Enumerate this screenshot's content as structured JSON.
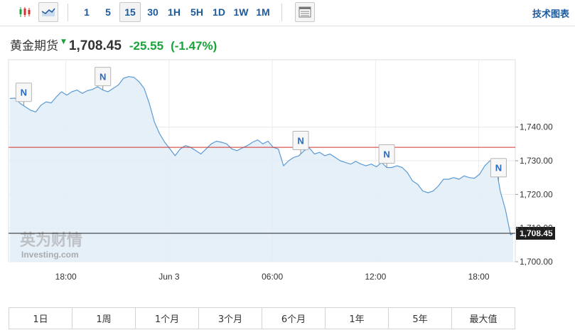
{
  "toolbar": {
    "intervals": [
      "1",
      "5",
      "15",
      "30",
      "1H",
      "5H",
      "1D",
      "1W",
      "1M"
    ],
    "active_interval": "15",
    "technical_chart_label": "技术图表"
  },
  "quote": {
    "name": "黄金期货",
    "price": "1,708.45",
    "change": "-25.55",
    "change_pct": "(-1.47%)",
    "down_color": "#1aa33a"
  },
  "watermark": {
    "brand_cn": "英为财情",
    "brand_en": "Investing.com"
  },
  "ranges": [
    "1日",
    "1周",
    "1个月",
    "3个月",
    "6个月",
    "1年",
    "5年",
    "最大值"
  ],
  "chart_data": {
    "type": "area",
    "title": "",
    "xlabel": "",
    "ylabel": "",
    "ylim": [
      1700,
      1760
    ],
    "y_ticks": [
      1700,
      1710,
      1720,
      1730,
      1740
    ],
    "y_tick_labels": [
      "1,700.00",
      "1,710.00",
      "1,720.00",
      "1,730.00",
      "1,740.00"
    ],
    "x_tick_labels": [
      {
        "label": "18:00",
        "t": 3.75
      },
      {
        "label": "Jun 3",
        "t": 9.75
      },
      {
        "label": "06:00",
        "t": 15.75
      },
      {
        "label": "12:00",
        "t": 21.75
      },
      {
        "label": "18:00",
        "t": 27.75
      }
    ],
    "x_range": [
      0.5,
      29.75
    ],
    "time_unit": "hours",
    "series": [
      {
        "values": [
          [
            0.5,
            1748.5
          ],
          [
            0.8,
            1748.6
          ],
          [
            1.1,
            1747.0
          ],
          [
            1.4,
            1746.0
          ],
          [
            1.7,
            1745.0
          ],
          [
            2.0,
            1744.5
          ],
          [
            2.3,
            1746.5
          ],
          [
            2.6,
            1747.5
          ],
          [
            2.9,
            1747.2
          ],
          [
            3.2,
            1749.0
          ],
          [
            3.5,
            1750.5
          ],
          [
            3.8,
            1749.5
          ],
          [
            4.1,
            1750.5
          ],
          [
            4.4,
            1751.0
          ],
          [
            4.7,
            1750.0
          ],
          [
            5.0,
            1750.8
          ],
          [
            5.3,
            1751.2
          ],
          [
            5.6,
            1752.0
          ],
          [
            5.9,
            1751.0
          ],
          [
            6.2,
            1750.5
          ],
          [
            6.5,
            1751.5
          ],
          [
            6.8,
            1752.5
          ],
          [
            7.1,
            1754.5
          ],
          [
            7.4,
            1755.0
          ],
          [
            7.7,
            1754.8
          ],
          [
            8.0,
            1753.5
          ],
          [
            8.3,
            1751.5
          ],
          [
            8.6,
            1747.0
          ],
          [
            8.9,
            1741.5
          ],
          [
            9.2,
            1738.0
          ],
          [
            9.5,
            1735.5
          ],
          [
            9.8,
            1733.5
          ],
          [
            10.1,
            1731.5
          ],
          [
            10.4,
            1733.5
          ],
          [
            10.7,
            1734.5
          ],
          [
            11.0,
            1734.0
          ],
          [
            11.3,
            1733.0
          ],
          [
            11.6,
            1732.0
          ],
          [
            11.9,
            1733.5
          ],
          [
            12.2,
            1735.0
          ],
          [
            12.5,
            1735.8
          ],
          [
            12.8,
            1735.5
          ],
          [
            13.1,
            1735.0
          ],
          [
            13.4,
            1733.5
          ],
          [
            13.7,
            1733.0
          ],
          [
            14.0,
            1733.8
          ],
          [
            14.3,
            1734.5
          ],
          [
            14.6,
            1735.5
          ],
          [
            14.9,
            1736.2
          ],
          [
            15.2,
            1735.0
          ],
          [
            15.5,
            1735.8
          ],
          [
            15.8,
            1734.0
          ],
          [
            16.1,
            1733.5
          ],
          [
            16.4,
            1728.5
          ],
          [
            16.7,
            1730.0
          ],
          [
            17.0,
            1731.0
          ],
          [
            17.3,
            1731.5
          ],
          [
            17.6,
            1733.0
          ],
          [
            17.9,
            1733.8
          ],
          [
            18.2,
            1732.0
          ],
          [
            18.5,
            1732.5
          ],
          [
            18.8,
            1731.5
          ],
          [
            19.1,
            1732.0
          ],
          [
            19.4,
            1731.0
          ],
          [
            19.7,
            1730.0
          ],
          [
            20.0,
            1729.5
          ],
          [
            20.3,
            1729.0
          ],
          [
            20.6,
            1729.8
          ],
          [
            20.9,
            1729.0
          ],
          [
            21.2,
            1728.5
          ],
          [
            21.5,
            1729.0
          ],
          [
            21.8,
            1728.2
          ],
          [
            22.1,
            1729.5
          ],
          [
            22.4,
            1728.0
          ],
          [
            22.7,
            1728.0
          ],
          [
            23.0,
            1728.5
          ],
          [
            23.3,
            1728.0
          ],
          [
            23.6,
            1726.5
          ],
          [
            23.9,
            1724.0
          ],
          [
            24.2,
            1723.0
          ],
          [
            24.5,
            1721.0
          ],
          [
            24.8,
            1720.5
          ],
          [
            25.1,
            1721.0
          ],
          [
            25.4,
            1722.5
          ],
          [
            25.7,
            1724.5
          ],
          [
            26.0,
            1724.5
          ],
          [
            26.3,
            1725.0
          ],
          [
            26.6,
            1724.5
          ],
          [
            26.9,
            1725.5
          ],
          [
            27.2,
            1725.0
          ],
          [
            27.5,
            1724.8
          ],
          [
            27.8,
            1726.0
          ],
          [
            28.1,
            1728.5
          ],
          [
            28.4,
            1730.0
          ],
          [
            28.7,
            1729.8
          ],
          [
            29.0,
            1721.0
          ],
          [
            29.3,
            1715.5
          ],
          [
            29.6,
            1708.0
          ],
          [
            29.75,
            1708.45
          ]
        ]
      }
    ],
    "reference_lines": [
      {
        "value": 1734.0,
        "color": "#d0312d"
      },
      {
        "value": 1708.45,
        "color": "#222222",
        "label": "1,708.45"
      }
    ],
    "markers": [
      {
        "label": "N",
        "t": 1.3
      },
      {
        "label": "N",
        "t": 5.9
      },
      {
        "label": "N",
        "t": 17.4
      },
      {
        "label": "N",
        "t": 22.4
      },
      {
        "label": "N",
        "t": 28.9
      }
    ],
    "line_color": "#5b9bd5",
    "fill_color": "#e2edf7",
    "grid": true
  }
}
